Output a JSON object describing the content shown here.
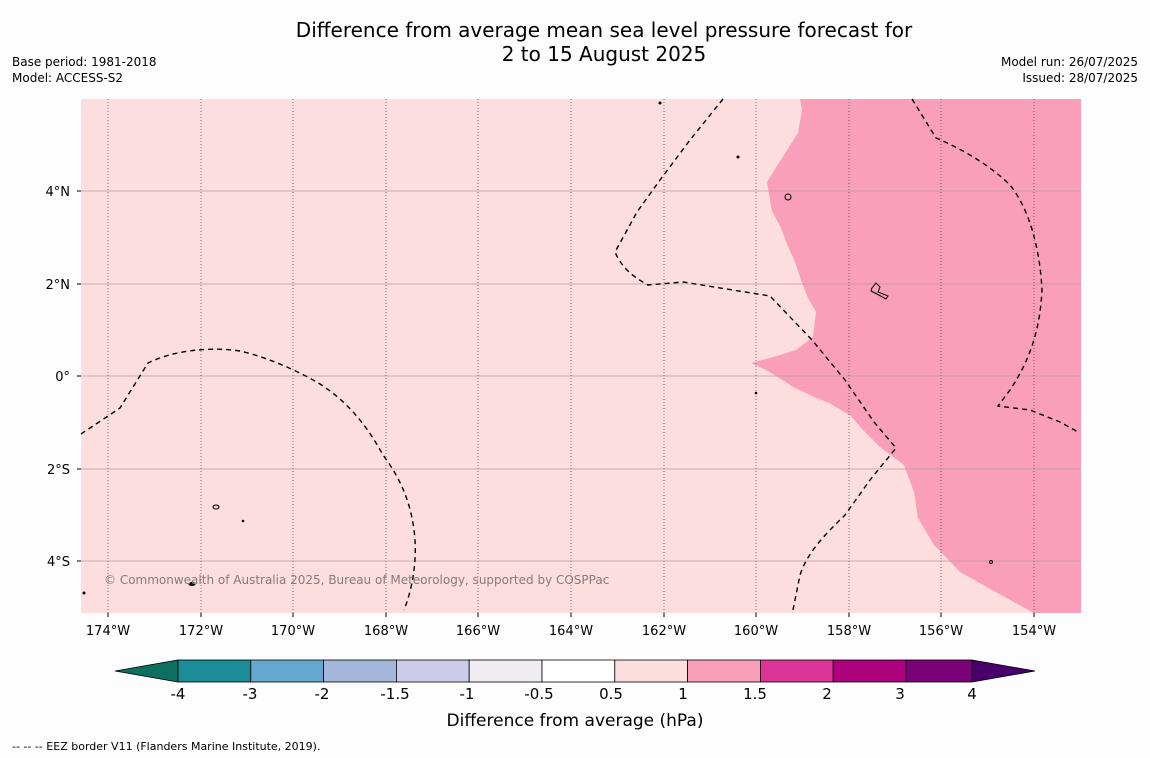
{
  "title": {
    "line1": "Difference from average mean sea level pressure forecast for",
    "line2": "2 to 15 August 2025"
  },
  "meta_left": {
    "base_period": "Base period: 1981-2018",
    "model": "Model: ACCESS-S2"
  },
  "meta_right": {
    "model_run": "Model run: 26/07/2025",
    "issued": "Issued: 28/07/2025"
  },
  "map": {
    "lat_labels": [
      "4°N",
      "2°N",
      "0°",
      "2°S",
      "4°S"
    ],
    "lon_labels": [
      "174°W",
      "172°W",
      "170°W",
      "168°W",
      "166°W",
      "164°W",
      "162°W",
      "160°W",
      "158°W",
      "156°W",
      "154°W"
    ],
    "copyright": "© Commonwealth of Australia 2025, Bureau of Meteorology, supported by COSPPac",
    "colors": {
      "background_class": "#fddede",
      "higher_class": "#f99fb9"
    }
  },
  "colorbar": {
    "tick_labels": [
      "-4",
      "-3",
      "-2",
      "-1.5",
      "-1",
      "-0.5",
      "0.5",
      "1",
      "1.5",
      "2",
      "3",
      "4"
    ],
    "colors": [
      "#0c6f60",
      "#1b8c98",
      "#65a8cf",
      "#a4b7da",
      "#ccccea",
      "#efedf2",
      "#ffffff",
      "#fddede",
      "#f99fb9",
      "#dd3497",
      "#ae017e",
      "#7a0177",
      "#49006a"
    ],
    "label": "Difference from average (hPa)"
  },
  "footnote": "--  --  -- EEZ border V11 (Flanders Marine Institute, 2019)."
}
